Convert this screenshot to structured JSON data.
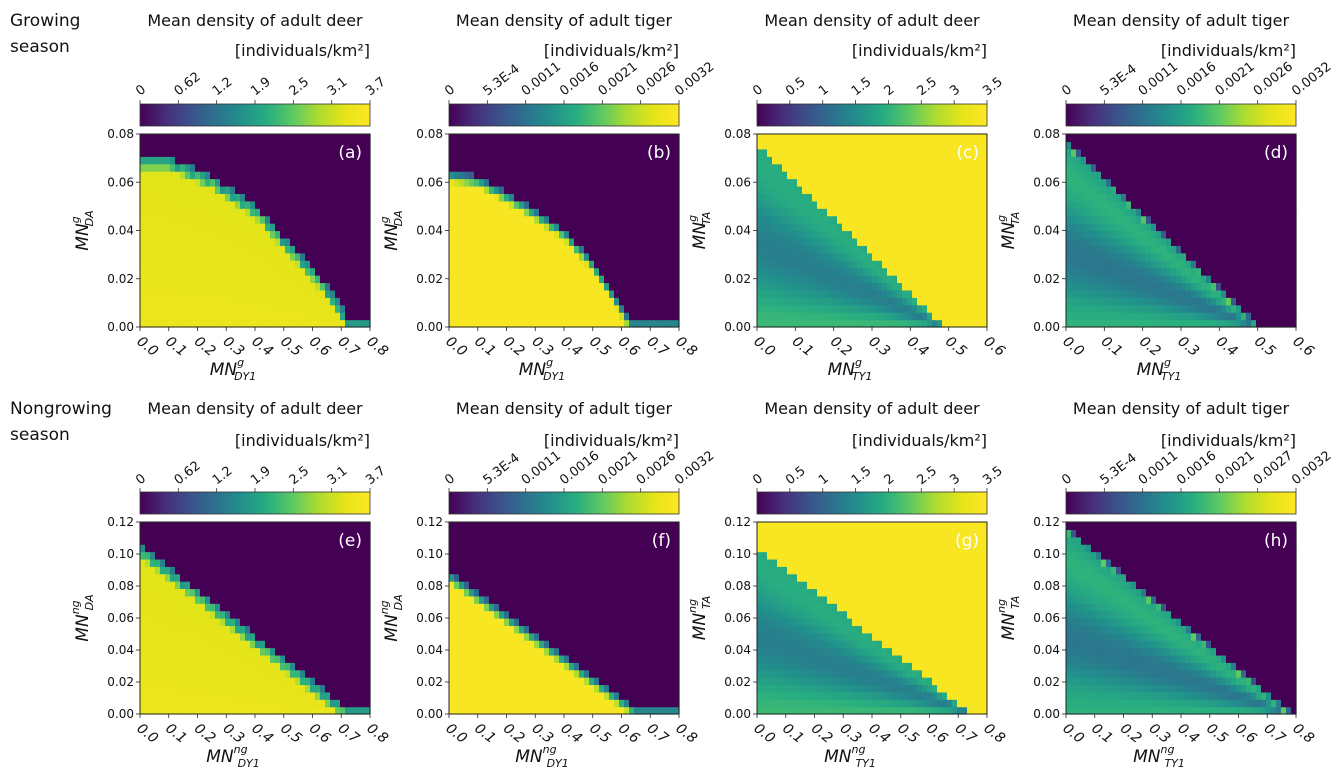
{
  "row_labels": [
    [
      "Growing",
      "season"
    ],
    [
      "Nongrowing",
      "season"
    ]
  ],
  "colormap": [
    "#440154",
    "#472d7b",
    "#3b528b",
    "#2c728e",
    "#21918c",
    "#28ae80",
    "#5ec962",
    "#addc30",
    "#e5e419",
    "#fde725"
  ],
  "chart_data": [
    {
      "type": "heatmap",
      "label": "(a)",
      "title": [
        "Mean density of adult deer",
        "[individuals/km²]"
      ],
      "colorbar_ticks": [
        "0",
        "0.62",
        "1.2",
        "1.9",
        "2.5",
        "3.1",
        "3.7"
      ],
      "x_ticks": [
        "0.0",
        "0.1",
        "0.2",
        "0.3",
        "0.4",
        "0.5",
        "0.6",
        "0.7",
        "0.8"
      ],
      "y_ticks": [
        "0.00",
        "0.02",
        "0.04",
        "0.06",
        "0.08"
      ],
      "xlim": [
        0,
        0.8
      ],
      "ylim": [
        0,
        0.08
      ],
      "xlabel": {
        "main": "MN",
        "sup": "g",
        "sub": "DY1"
      },
      "ylabel": {
        "main": "MN",
        "sup": "g",
        "sub": "DA"
      },
      "pattern": "deer",
      "boundary": [
        [
          0,
          0.068
        ],
        [
          0.1,
          0.068
        ],
        [
          0.25,
          0.06
        ],
        [
          0.4,
          0.048
        ],
        [
          0.5,
          0.035
        ],
        [
          0.6,
          0.022
        ],
        [
          0.68,
          0.01
        ],
        [
          0.73,
          0
        ]
      ]
    },
    {
      "type": "heatmap",
      "label": "(b)",
      "title": [
        "Mean density of adult tiger",
        "[individuals/km²]"
      ],
      "colorbar_ticks": [
        "0",
        "5.3E-4",
        "0.0011",
        "0.0016",
        "0.0021",
        "0.0026",
        "0.0032"
      ],
      "x_ticks": [
        "0.0",
        "0.1",
        "0.2",
        "0.3",
        "0.4",
        "0.5",
        "0.6",
        "0.7",
        "0.8"
      ],
      "y_ticks": [
        "0.00",
        "0.02",
        "0.04",
        "0.06",
        "0.08"
      ],
      "xlim": [
        0,
        0.8
      ],
      "ylim": [
        0,
        0.08
      ],
      "xlabel": {
        "main": "MN",
        "sup": "g",
        "sub": "DY1"
      },
      "ylabel": {
        "main": "MN",
        "sup": "g",
        "sub": "DA"
      },
      "pattern": "tigerstep",
      "boundary": [
        [
          0,
          0.062
        ],
        [
          0.1,
          0.06
        ],
        [
          0.25,
          0.05
        ],
        [
          0.4,
          0.038
        ],
        [
          0.5,
          0.025
        ],
        [
          0.57,
          0.012
        ],
        [
          0.63,
          0
        ]
      ]
    },
    {
      "type": "heatmap",
      "label": "(c)",
      "title": [
        "Mean density of adult deer",
        "[individuals/km²]"
      ],
      "colorbar_ticks": [
        "0",
        "0.5",
        "1",
        "1.5",
        "2",
        "2.5",
        "3",
        "3.5"
      ],
      "x_ticks": [
        "0.0",
        "0.1",
        "0.2",
        "0.3",
        "0.4",
        "0.5",
        "0.6"
      ],
      "y_ticks": [
        "0.00",
        "0.02",
        "0.04",
        "0.06",
        "0.08"
      ],
      "xlim": [
        0,
        0.6
      ],
      "ylim": [
        0,
        0.08
      ],
      "xlabel": {
        "main": "MN",
        "sup": "g",
        "sub": "TY1"
      },
      "ylabel": {
        "main": "MN",
        "sup": "g",
        "sub": "TA"
      },
      "pattern": "tigerdeer",
      "boundary": [
        [
          0,
          0.076
        ],
        [
          0.49,
          0
        ]
      ]
    },
    {
      "type": "heatmap",
      "label": "(d)",
      "title": [
        "Mean density of adult tiger",
        "[individuals/km²]"
      ],
      "colorbar_ticks": [
        "0",
        "5.3E-4",
        "0.0011",
        "0.0016",
        "0.0021",
        "0.0026",
        "0.0032"
      ],
      "x_ticks": [
        "0.0",
        "0.1",
        "0.2",
        "0.3",
        "0.4",
        "0.5",
        "0.6"
      ],
      "y_ticks": [
        "0.00",
        "0.02",
        "0.04",
        "0.06",
        "0.08"
      ],
      "xlim": [
        0,
        0.6
      ],
      "ylim": [
        0,
        0.08
      ],
      "xlabel": {
        "main": "MN",
        "sup": "g",
        "sub": "TY1"
      },
      "ylabel": {
        "main": "MN",
        "sup": "g",
        "sub": "TA"
      },
      "pattern": "tigertiger",
      "boundary": [
        [
          0,
          0.076
        ],
        [
          0.5,
          0
        ]
      ]
    },
    {
      "type": "heatmap",
      "label": "(e)",
      "title": [
        "Mean density of adult deer",
        "[individuals/km²]"
      ],
      "colorbar_ticks": [
        "0",
        "0.62",
        "1.2",
        "1.9",
        "2.5",
        "3.1",
        "3.7"
      ],
      "x_ticks": [
        "0.0",
        "0.1",
        "0.2",
        "0.3",
        "0.4",
        "0.5",
        "0.6",
        "0.7",
        "0.8"
      ],
      "y_ticks": [
        "0.00",
        "0.02",
        "0.04",
        "0.06",
        "0.08",
        "0.10",
        "0.12"
      ],
      "xlim": [
        0,
        0.8
      ],
      "ylim": [
        0,
        0.12
      ],
      "xlabel": {
        "main": "MN",
        "sup": "ng",
        "sub": "DY1"
      },
      "ylabel": {
        "main": "MN",
        "sup": "ng",
        "sub": "DA"
      },
      "pattern": "deer",
      "boundary": [
        [
          0,
          0.102
        ],
        [
          0.72,
          0
        ]
      ]
    },
    {
      "type": "heatmap",
      "label": "(f)",
      "title": [
        "Mean density of adult tiger",
        "[individuals/km²]"
      ],
      "colorbar_ticks": [
        "0",
        "5.3E-4",
        "0.0011",
        "0.0016",
        "0.0021",
        "0.0026",
        "0.0032"
      ],
      "x_ticks": [
        "0.0",
        "0.1",
        "0.2",
        "0.3",
        "0.4",
        "0.5",
        "0.6",
        "0.7",
        "0.8"
      ],
      "y_ticks": [
        "0.00",
        "0.02",
        "0.04",
        "0.06",
        "0.08",
        "0.10",
        "0.12"
      ],
      "xlim": [
        0,
        0.8
      ],
      "ylim": [
        0,
        0.12
      ],
      "xlabel": {
        "main": "MN",
        "sup": "ng",
        "sub": "DY1"
      },
      "ylabel": {
        "main": "MN",
        "sup": "ng",
        "sub": "DA"
      },
      "pattern": "tigerstep",
      "boundary": [
        [
          0,
          0.085
        ],
        [
          0.65,
          0
        ]
      ]
    },
    {
      "type": "heatmap",
      "label": "(g)",
      "title": [
        "Mean density of adult deer",
        "[individuals/km²]"
      ],
      "colorbar_ticks": [
        "0",
        "0.5",
        "1",
        "1.5",
        "2",
        "2.5",
        "3",
        "3.5"
      ],
      "x_ticks": [
        "0.0",
        "0.1",
        "0.2",
        "0.3",
        "0.4",
        "0.5",
        "0.6",
        "0.7",
        "0.8"
      ],
      "y_ticks": [
        "0.00",
        "0.02",
        "0.04",
        "0.06",
        "0.08",
        "0.10",
        "0.12"
      ],
      "xlim": [
        0,
        0.8
      ],
      "ylim": [
        0,
        0.12
      ],
      "xlabel": {
        "main": "MN",
        "sup": "ng",
        "sub": "TY1"
      },
      "ylabel": {
        "main": "MN",
        "sup": "ng",
        "sub": "TA"
      },
      "pattern": "tigerdeer",
      "boundary": [
        [
          0,
          0.105
        ],
        [
          0.75,
          0
        ]
      ]
    },
    {
      "type": "heatmap",
      "label": "(h)",
      "title": [
        "Mean density of adult tiger",
        "[individuals/km²]"
      ],
      "colorbar_ticks": [
        "0",
        "5.3E-4",
        "0.0011",
        "0.0016",
        "0.0021",
        "0.0027",
        "0.0032"
      ],
      "x_ticks": [
        "0.0",
        "0.1",
        "0.2",
        "0.3",
        "0.4",
        "0.5",
        "0.6",
        "0.7",
        "0.8"
      ],
      "y_ticks": [
        "0.00",
        "0.02",
        "0.04",
        "0.06",
        "0.08",
        "0.10",
        "0.12"
      ],
      "xlim": [
        0,
        0.8
      ],
      "ylim": [
        0,
        0.12
      ],
      "xlabel": {
        "main": "MN",
        "sup": "ng",
        "sub": "TY1"
      },
      "ylabel": {
        "main": "MN",
        "sup": "ng",
        "sub": "TA"
      },
      "pattern": "tigertiger",
      "boundary": [
        [
          0,
          0.115
        ],
        [
          0.78,
          0
        ]
      ]
    }
  ]
}
